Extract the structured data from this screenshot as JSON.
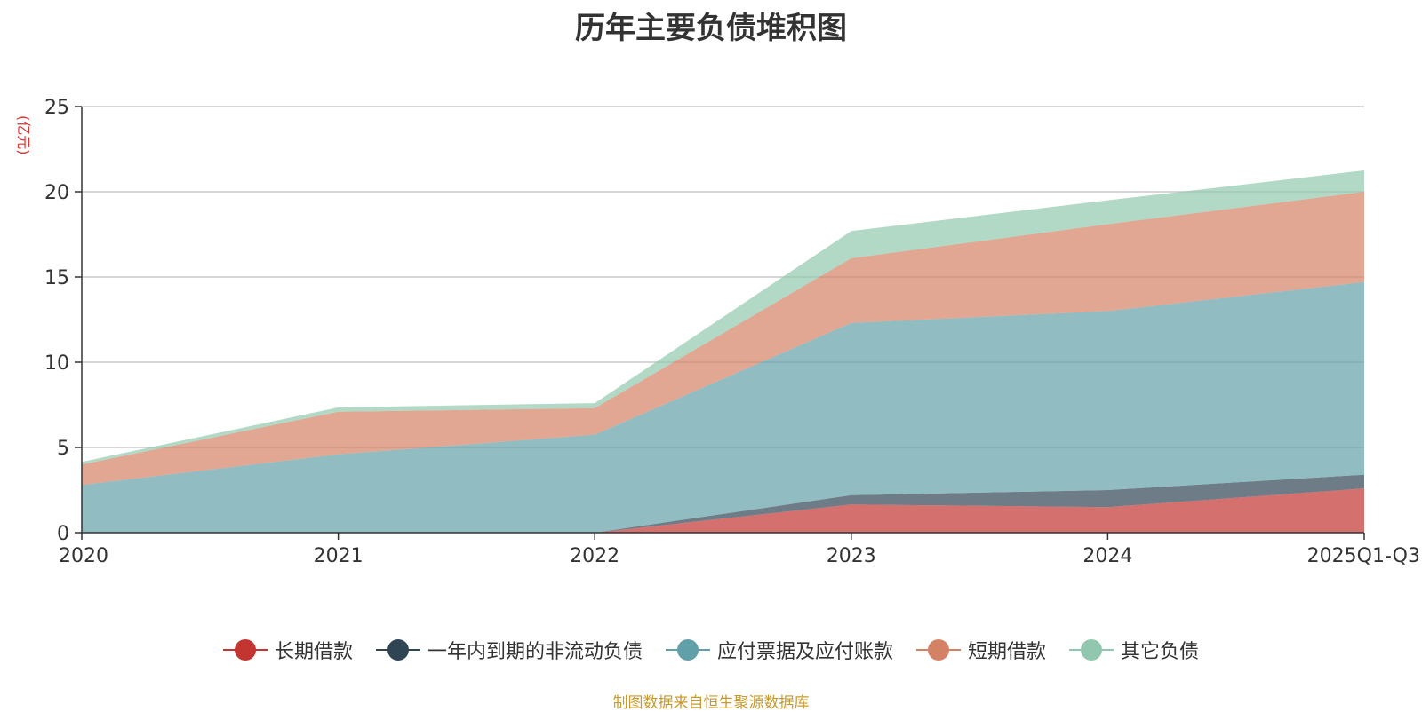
{
  "chart_data": {
    "type": "area",
    "stacked": true,
    "title": "历年主要负债堆积图",
    "unit_label": "(亿元)",
    "categories": [
      "2020",
      "2021",
      "2022",
      "2023",
      "2024",
      "2025Q1-Q3"
    ],
    "y_ticks": [
      0,
      5,
      10,
      15,
      20,
      25
    ],
    "ylim": [
      0,
      25
    ],
    "grid": true,
    "legend_position": "bottom-center",
    "series": [
      {
        "name": "长期借款",
        "color": "#c23531",
        "values": [
          0,
          0,
          0,
          1.65,
          1.5,
          2.6
        ]
      },
      {
        "name": "一年内到期的非流动负债",
        "color": "#2f4554",
        "values": [
          0,
          0,
          0,
          0.55,
          1.0,
          0.8
        ]
      },
      {
        "name": "应付票据及应付账款",
        "color": "#61a0a8",
        "values": [
          2.8,
          4.6,
          5.75,
          10.1,
          10.5,
          11.3
        ]
      },
      {
        "name": "短期借款",
        "color": "#d48265",
        "values": [
          1.2,
          2.5,
          1.55,
          3.8,
          5.1,
          5.3
        ]
      },
      {
        "name": "其它负债",
        "color": "#91c7ae",
        "values": [
          0.15,
          0.25,
          0.3,
          1.6,
          1.4,
          1.25
        ]
      }
    ]
  },
  "source_note": "制图数据来自恒生聚源数据库"
}
